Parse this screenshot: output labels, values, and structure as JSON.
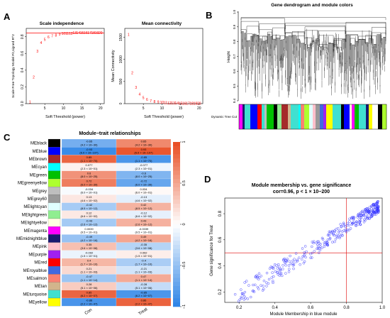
{
  "panels": {
    "a": "A",
    "b": "B",
    "c": "C",
    "d": "D"
  },
  "panel_a": {
    "left": {
      "title": "Scale independence",
      "xlabel": "Soft Threshold (power)",
      "ylabel": "Scale Free Topology Model Fit,signed R^2",
      "xticks": [
        "5",
        "10",
        "15",
        "20"
      ],
      "yticks": [
        "0.0",
        "0.2",
        "0.4",
        "0.6",
        "0.8"
      ]
    },
    "right": {
      "title": "Mean connectivity",
      "xlabel": "Soft Threshold (power)",
      "ylabel": "Mean Connectivity",
      "xticks": [
        "5",
        "10",
        "15",
        "20"
      ],
      "yticks": [
        "0",
        "500",
        "1000",
        "1500"
      ]
    }
  },
  "panel_b": {
    "title": "Gene dendrogram and module colors",
    "ylabel": "Height",
    "yticks": [
      "1.0",
      "0.9",
      "0.8",
      "0.7",
      "0.6",
      "0.5",
      "0.4"
    ],
    "colorbar_label": "Dynamic Tree Cut"
  },
  "panel_c": {
    "title": "Module−trait relationships",
    "x_categories": [
      "Con",
      "Treat"
    ],
    "colorbar_ticks": [
      "1",
      "0.5",
      "0",
      "−0.5",
      "−1"
    ],
    "rows": [
      {
        "module": "MEblack",
        "color": "#000000",
        "con_r": "-0.65",
        "con_p": "(4.2 × 10−30)",
        "treat_r": "0.65",
        "treat_p": "(4.2 × 10−30)"
      },
      {
        "module": "MEblue",
        "color": "#0000ff",
        "con_r": "-0.93",
        "con_p": "(6.0 × 10−107)",
        "treat_r": "0.93",
        "treat_p": "(6.0 × 10−107)"
      },
      {
        "module": "MEbrown",
        "color": "#a52a2a",
        "con_r": "0.85",
        "con_p": "(1.1 × 10−70)",
        "treat_r": "-0.85",
        "treat_p": "(1.1 × 10−70)"
      },
      {
        "module": "MEcyan",
        "color": "#00ffff",
        "con_r": "0.077",
        "con_p": "(2.3 × 10−01)",
        "treat_r": "-0.077",
        "treat_p": "(2.3 × 10−01)"
      },
      {
        "module": "MEgreen",
        "color": "#00c000",
        "con_r": "0.6",
        "con_p": "(8.0 × 10−25)",
        "treat_r": "-0.6",
        "treat_p": "(8.0 × 10−25)"
      },
      {
        "module": "MEgreenyellow",
        "color": "#adff2f",
        "con_r": "0.72",
        "con_p": "(6.0 × 10−39)",
        "treat_r": "-0.72",
        "treat_p": "(6.0 × 10−39)"
      },
      {
        "module": "MEgrey",
        "color": "#bebebe",
        "con_r": "-0.034",
        "con_p": "(6.0 × 10−01)",
        "treat_r": "0.034",
        "treat_p": "(6.0 × 10−01)"
      },
      {
        "module": "MEgrey60",
        "color": "#999999",
        "con_r": "0.13",
        "con_p": "(4.6 × 10−02)",
        "treat_r": "-0.13",
        "treat_p": "(4.6 × 10−02)"
      },
      {
        "module": "MElightcyan",
        "color": "#e0ffff",
        "con_r": "-0.42",
        "con_p": "(8.5 × 10−12)",
        "treat_r": "0.42",
        "treat_p": "(8.5 × 10−12)"
      },
      {
        "module": "MElightgreen",
        "color": "#90ee90",
        "con_r": "0.12",
        "con_p": "(6.6 × 10−02)",
        "treat_r": "-0.12",
        "treat_p": "(6.6 × 10−02)"
      },
      {
        "module": "MElightyellow",
        "color": "#ffffe0",
        "con_r": "-0.43",
        "con_p": "(2.6 × 10−12)",
        "treat_r": "0.43",
        "treat_p": "(2.6 × 10−12)"
      },
      {
        "module": "MEmagenta",
        "color": "#ff00ff",
        "con_r": "0.0039",
        "con_p": "(9.5 × 10−01)",
        "treat_r": "-0.0039",
        "treat_p": "(9.5 × 10−01)"
      },
      {
        "module": "MEmidnightblue",
        "color": "#191970",
        "con_r": "-0.49",
        "con_p": "(4.2 × 10−16)",
        "treat_r": "0.49",
        "treat_p": "(4.2 × 10−16)"
      },
      {
        "module": "MEpink",
        "color": "#ffc0cb",
        "con_r": "0.35",
        "con_p": "(3.6 × 10−08)",
        "treat_r": "-0.35",
        "treat_p": "(3.6 × 10−08)"
      },
      {
        "module": "MEpurple",
        "color": "#a020f0",
        "con_r": "-0.092",
        "con_p": "(1.5 × 10−01)",
        "treat_r": "0.092",
        "treat_p": "(1.5 × 10−01)"
      },
      {
        "module": "MEred",
        "color": "#ff0000",
        "con_r": "0.4",
        "con_p": "(1.7 × 10−10)",
        "treat_r": "-0.4",
        "treat_p": "(1.7 × 10−10)"
      },
      {
        "module": "MEroyalblue",
        "color": "#4169e1",
        "con_r": "0.21",
        "con_p": "(1.1 × 10−03)",
        "treat_r": "-0.21",
        "treat_p": "(1.1 × 10−03)"
      },
      {
        "module": "MEsalmon",
        "color": "#fa8072",
        "con_r": "-0.47",
        "con_p": "(1.1 × 10−14)",
        "treat_r": "0.47",
        "treat_p": "(1.1 × 10−14)"
      },
      {
        "module": "MEtan",
        "color": "#d2b48c",
        "con_r": "0.28",
        "con_p": "(5.1 × 10−06)",
        "treat_r": "-0.28",
        "treat_p": "(5.1 × 10−06)"
      },
      {
        "module": "MEturquoise",
        "color": "#40e0d0",
        "con_r": "0.85",
        "con_p": "(6.2 × 10−07)",
        "treat_r": "-0.85",
        "treat_p": "(6.2 × 10−07)"
      },
      {
        "module": "MEyellow",
        "color": "#ffff00",
        "con_r": "-0.86",
        "con_p": "(2.2 × 10−47)",
        "treat_r": "0.86",
        "treat_p": "(2.2 × 10−47)"
      }
    ]
  },
  "panel_d": {
    "title": "Module membership vs. gene significance",
    "subtitle": "cor=0.96,  p < 1 × 10−200",
    "xlabel": "Module Membership in blue module",
    "ylabel": "Gene significance for  Treat",
    "xticks": [
      "0.2",
      "0.4",
      "0.6",
      "0.8",
      "1.0"
    ],
    "yticks": [
      "0.2",
      "0.4",
      "0.6",
      "0.8"
    ]
  },
  "chart_data": [
    {
      "type": "scatter",
      "title": "Scale independence",
      "xlabel": "Soft Threshold (power)",
      "ylabel": "Scale Free Topology Model Fit,signed R^2",
      "xlim": [
        1,
        20
      ],
      "ylim": [
        0,
        0.9
      ],
      "x": [
        1,
        2,
        3,
        4,
        5,
        6,
        7,
        8,
        9,
        10,
        11,
        12,
        13,
        14,
        15,
        16,
        17,
        18,
        19,
        20
      ],
      "y": [
        0.02,
        0.32,
        0.63,
        0.73,
        0.77,
        0.8,
        0.81,
        0.82,
        0.83,
        0.84,
        0.84,
        0.84,
        0.85,
        0.85,
        0.85,
        0.85,
        0.85,
        0.85,
        0.85,
        0.85
      ],
      "threshold": 0.85
    },
    {
      "type": "scatter",
      "title": "Mean connectivity",
      "xlabel": "Soft Threshold (power)",
      "ylabel": "Mean Connectivity",
      "xlim": [
        1,
        20
      ],
      "ylim": [
        0,
        1700
      ],
      "x": [
        1,
        2,
        3,
        4,
        5,
        6,
        7,
        8,
        9,
        10,
        11,
        12,
        13,
        14,
        15,
        16,
        17,
        18,
        19,
        20
      ],
      "y": [
        1560,
        700,
        370,
        220,
        140,
        95,
        68,
        50,
        38,
        30,
        24,
        20,
        17,
        14,
        12,
        11,
        10,
        9,
        8,
        7
      ]
    },
    {
      "type": "heatmap",
      "title": "Module−trait relationships",
      "x": [
        "Con",
        "Treat"
      ],
      "y": [
        "MEblack",
        "MEblue",
        "MEbrown",
        "MEcyan",
        "MEgreen",
        "MEgreenyellow",
        "MEgrey",
        "MEgrey60",
        "MElightcyan",
        "MElightgreen",
        "MElightyellow",
        "MEmagenta",
        "MEmidnightblue",
        "MEpink",
        "MEpurple",
        "MEred",
        "MEroyalblue",
        "MEsalmon",
        "MEtan",
        "MEturquoise",
        "MEyellow"
      ],
      "values": [
        [
          -0.65,
          0.65
        ],
        [
          -0.93,
          0.93
        ],
        [
          0.85,
          -0.85
        ],
        [
          0.077,
          -0.077
        ],
        [
          0.6,
          -0.6
        ],
        [
          0.72,
          -0.72
        ],
        [
          -0.034,
          0.034
        ],
        [
          0.13,
          -0.13
        ],
        [
          -0.42,
          0.42
        ],
        [
          0.12,
          -0.12
        ],
        [
          -0.43,
          0.43
        ],
        [
          0.0039,
          -0.0039
        ],
        [
          -0.49,
          0.49
        ],
        [
          0.35,
          -0.35
        ],
        [
          -0.092,
          0.092
        ],
        [
          0.4,
          -0.4
        ],
        [
          0.21,
          -0.21
        ],
        [
          -0.47,
          0.47
        ],
        [
          0.28,
          -0.28
        ],
        [
          0.85,
          -0.85
        ],
        [
          -0.86,
          0.86
        ]
      ],
      "colorscale": [
        "#2b83e6",
        "#ffffff",
        "#e84a1f"
      ],
      "zlim": [
        -1,
        1
      ]
    },
    {
      "type": "scatter",
      "title": "Module membership vs. gene significance",
      "xlabel": "Module Membership in blue module",
      "ylabel": "Gene significance for  Treat",
      "xlim": [
        0.12,
        1.0
      ],
      "ylim": [
        0.12,
        0.92
      ],
      "reference_lines": {
        "x": 0.8,
        "y": 0.5
      },
      "point_color": "#3333ff",
      "n_points_approx": 350
    }
  ]
}
